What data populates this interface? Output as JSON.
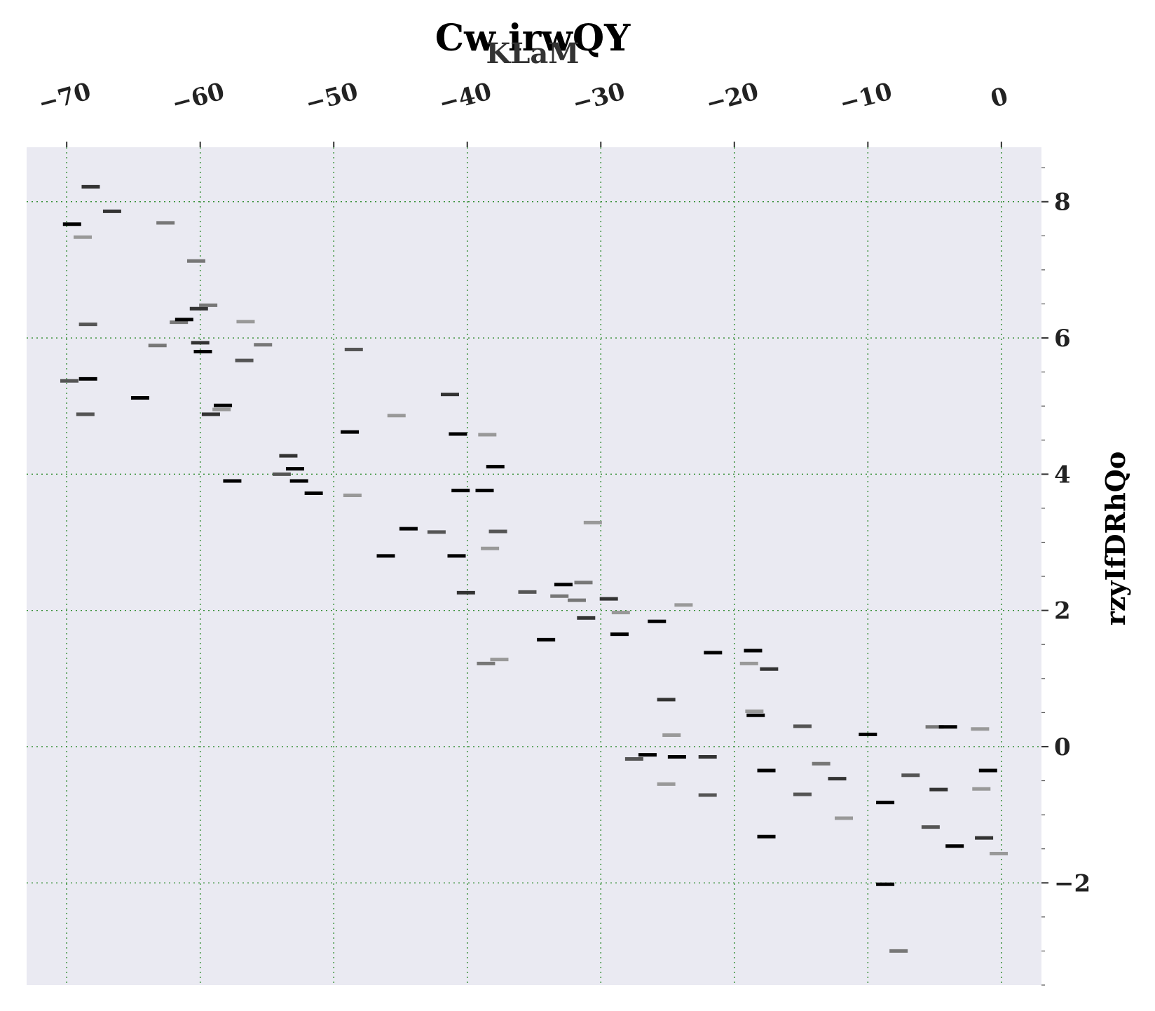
{
  "chart_data": {
    "type": "scatter",
    "marker": "horizontal-dash",
    "title": "Cw irwQY",
    "xlabel": "KLaM",
    "ylabel": "rzyIfDRhQo",
    "xlim": [
      -73,
      3
    ],
    "ylim": [
      -3.5,
      8.8
    ],
    "xticks": [
      -70,
      -60,
      -50,
      -40,
      -30,
      -20,
      -10,
      0
    ],
    "yticks": [
      -2,
      0,
      2,
      4,
      6,
      8
    ],
    "x_axis_position": "top",
    "y_axis_position": "right",
    "grid": true,
    "colors": {
      "background": "#eaeaf2",
      "grid": "#2e8b2e",
      "marker_shades": [
        "#000000",
        "#333333",
        "#555555",
        "#777777",
        "#999999"
      ]
    },
    "points": [
      {
        "x": -68.2,
        "y": 8.22,
        "shade": 1
      },
      {
        "x": -66.6,
        "y": 7.86,
        "shade": 1
      },
      {
        "x": -69.6,
        "y": 7.67,
        "shade": 0
      },
      {
        "x": -68.8,
        "y": 7.48,
        "shade": 4
      },
      {
        "x": -62.6,
        "y": 7.69,
        "shade": 3
      },
      {
        "x": -61.6,
        "y": 6.23,
        "shade": 3
      },
      {
        "x": -60.3,
        "y": 7.13,
        "shade": 3
      },
      {
        "x": -60.1,
        "y": 6.43,
        "shade": 1
      },
      {
        "x": -59.4,
        "y": 6.48,
        "shade": 3
      },
      {
        "x": -61.2,
        "y": 6.27,
        "shade": 0
      },
      {
        "x": -68.4,
        "y": 6.2,
        "shade": 2
      },
      {
        "x": -56.6,
        "y": 6.24,
        "shade": 4
      },
      {
        "x": -63.2,
        "y": 5.89,
        "shade": 3
      },
      {
        "x": -60.0,
        "y": 5.93,
        "shade": 1
      },
      {
        "x": -59.8,
        "y": 5.8,
        "shade": 0
      },
      {
        "x": -55.3,
        "y": 5.9,
        "shade": 3
      },
      {
        "x": -56.7,
        "y": 5.67,
        "shade": 2
      },
      {
        "x": -48.5,
        "y": 5.83,
        "shade": 2
      },
      {
        "x": -69.8,
        "y": 5.37,
        "shade": 2
      },
      {
        "x": -68.4,
        "y": 5.4,
        "shade": 0
      },
      {
        "x": -64.5,
        "y": 5.12,
        "shade": 0
      },
      {
        "x": -68.6,
        "y": 4.88,
        "shade": 2
      },
      {
        "x": -58.3,
        "y": 5.01,
        "shade": 0
      },
      {
        "x": -58.4,
        "y": 4.95,
        "shade": 4
      },
      {
        "x": -59.2,
        "y": 4.88,
        "shade": 1
      },
      {
        "x": -41.3,
        "y": 5.17,
        "shade": 1
      },
      {
        "x": -45.3,
        "y": 4.86,
        "shade": 4
      },
      {
        "x": -48.8,
        "y": 4.62,
        "shade": 0
      },
      {
        "x": -40.7,
        "y": 4.59,
        "shade": 0
      },
      {
        "x": -38.5,
        "y": 4.58,
        "shade": 4
      },
      {
        "x": -53.4,
        "y": 4.27,
        "shade": 1
      },
      {
        "x": -52.9,
        "y": 4.08,
        "shade": 0
      },
      {
        "x": -53.9,
        "y": 4.0,
        "shade": 2
      },
      {
        "x": -52.6,
        "y": 3.9,
        "shade": 0
      },
      {
        "x": -57.6,
        "y": 3.9,
        "shade": 0
      },
      {
        "x": -51.5,
        "y": 3.72,
        "shade": 0
      },
      {
        "x": -48.6,
        "y": 3.69,
        "shade": 4
      },
      {
        "x": -37.9,
        "y": 4.11,
        "shade": 0
      },
      {
        "x": -40.5,
        "y": 3.76,
        "shade": 0
      },
      {
        "x": -38.7,
        "y": 3.76,
        "shade": 0
      },
      {
        "x": -44.4,
        "y": 3.2,
        "shade": 0
      },
      {
        "x": -42.3,
        "y": 3.15,
        "shade": 2
      },
      {
        "x": -37.7,
        "y": 3.16,
        "shade": 2
      },
      {
        "x": -30.6,
        "y": 3.29,
        "shade": 4
      },
      {
        "x": -46.1,
        "y": 2.8,
        "shade": 0
      },
      {
        "x": -40.8,
        "y": 2.8,
        "shade": 0
      },
      {
        "x": -38.3,
        "y": 2.91,
        "shade": 4
      },
      {
        "x": -32.8,
        "y": 2.38,
        "shade": 0
      },
      {
        "x": -31.3,
        "y": 2.41,
        "shade": 3
      },
      {
        "x": -40.1,
        "y": 2.26,
        "shade": 1
      },
      {
        "x": -35.5,
        "y": 2.27,
        "shade": 2
      },
      {
        "x": -33.1,
        "y": 2.21,
        "shade": 3
      },
      {
        "x": -31.8,
        "y": 2.15,
        "shade": 3
      },
      {
        "x": -29.4,
        "y": 2.17,
        "shade": 1
      },
      {
        "x": -23.8,
        "y": 2.08,
        "shade": 4
      },
      {
        "x": -28.5,
        "y": 1.97,
        "shade": 4
      },
      {
        "x": -31.1,
        "y": 1.89,
        "shade": 1
      },
      {
        "x": -25.8,
        "y": 1.84,
        "shade": 0
      },
      {
        "x": -28.6,
        "y": 1.65,
        "shade": 0
      },
      {
        "x": -34.1,
        "y": 1.57,
        "shade": 0
      },
      {
        "x": -21.6,
        "y": 1.38,
        "shade": 0
      },
      {
        "x": -18.6,
        "y": 1.41,
        "shade": 0
      },
      {
        "x": -18.9,
        "y": 1.22,
        "shade": 4
      },
      {
        "x": -17.4,
        "y": 1.14,
        "shade": 1
      },
      {
        "x": -37.6,
        "y": 1.28,
        "shade": 4
      },
      {
        "x": -38.6,
        "y": 1.22,
        "shade": 3
      },
      {
        "x": -25.1,
        "y": 0.69,
        "shade": 1
      },
      {
        "x": -18.5,
        "y": 0.52,
        "shade": 4
      },
      {
        "x": -18.4,
        "y": 0.46,
        "shade": 0
      },
      {
        "x": -14.9,
        "y": 0.3,
        "shade": 2
      },
      {
        "x": -24.7,
        "y": 0.17,
        "shade": 4
      },
      {
        "x": -10.0,
        "y": 0.18,
        "shade": 0
      },
      {
        "x": -5.0,
        "y": 0.29,
        "shade": 3
      },
      {
        "x": -4.0,
        "y": 0.29,
        "shade": 0
      },
      {
        "x": -1.6,
        "y": 0.26,
        "shade": 4
      },
      {
        "x": -27.5,
        "y": -0.18,
        "shade": 2
      },
      {
        "x": -26.5,
        "y": -0.12,
        "shade": 0
      },
      {
        "x": -24.3,
        "y": -0.15,
        "shade": 0
      },
      {
        "x": -22.0,
        "y": -0.15,
        "shade": 1
      },
      {
        "x": -13.5,
        "y": -0.25,
        "shade": 3
      },
      {
        "x": -17.6,
        "y": -0.35,
        "shade": 0
      },
      {
        "x": -12.3,
        "y": -0.47,
        "shade": 1
      },
      {
        "x": -6.8,
        "y": -0.42,
        "shade": 2
      },
      {
        "x": -1.0,
        "y": -0.35,
        "shade": 0
      },
      {
        "x": -25.1,
        "y": -0.55,
        "shade": 4
      },
      {
        "x": -22.0,
        "y": -0.71,
        "shade": 2
      },
      {
        "x": -14.9,
        "y": -0.7,
        "shade": 2
      },
      {
        "x": -4.7,
        "y": -0.63,
        "shade": 1
      },
      {
        "x": -1.5,
        "y": -0.62,
        "shade": 4
      },
      {
        "x": -8.7,
        "y": -0.82,
        "shade": 0
      },
      {
        "x": -11.8,
        "y": -1.05,
        "shade": 4
      },
      {
        "x": -5.3,
        "y": -1.18,
        "shade": 2
      },
      {
        "x": -17.6,
        "y": -1.32,
        "shade": 0
      },
      {
        "x": -3.5,
        "y": -1.46,
        "shade": 0
      },
      {
        "x": -1.3,
        "y": -1.34,
        "shade": 1
      },
      {
        "x": -0.2,
        "y": -1.57,
        "shade": 4
      },
      {
        "x": -8.7,
        "y": -2.02,
        "shade": 0
      },
      {
        "x": -7.7,
        "y": -3.0,
        "shade": 3
      }
    ]
  }
}
